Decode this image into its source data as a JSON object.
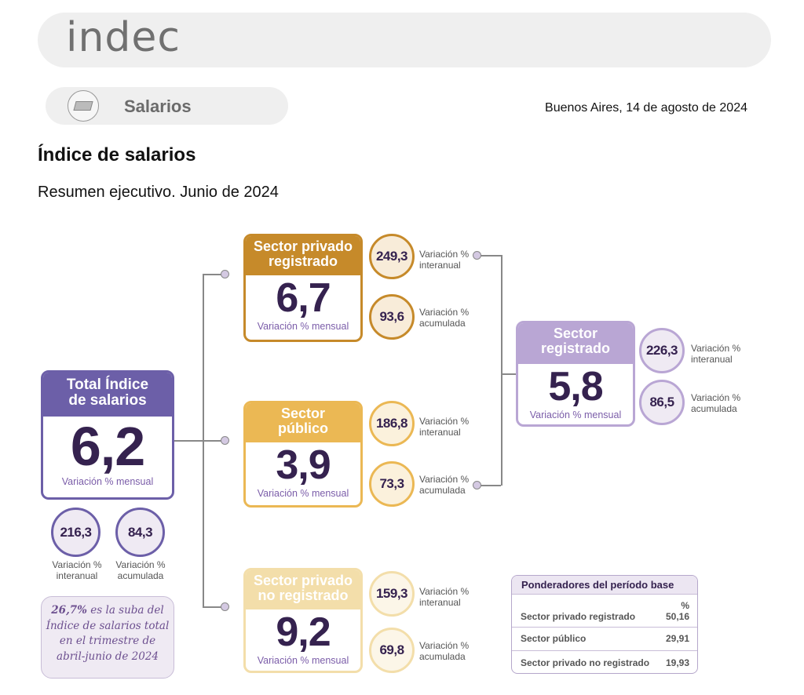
{
  "header": {
    "logo": "indec"
  },
  "section": {
    "label": "Salarios",
    "icon": "money-icon"
  },
  "date": "Buenos Aires, 14 de agosto de 2024",
  "title": "Índice de salarios",
  "subtitle": "Resumen ejecutivo. Junio de 2024",
  "monthly_label": "Variación % mensual",
  "interanual_label": [
    "Variación %",
    "interanual"
  ],
  "acumulada_label": [
    "Variación %",
    "acumulada"
  ],
  "total": {
    "title": [
      "Total Índice",
      "de salarios"
    ],
    "value": "6,2",
    "interanual": "216,3",
    "acumulada": "84,3",
    "color": "#6c5fa8"
  },
  "privado": {
    "title": [
      "Sector privado",
      "registrado"
    ],
    "value": "6,7",
    "interanual": "249,3",
    "acumulada": "93,6",
    "color": "#c68a2a"
  },
  "publico": {
    "title": [
      "Sector",
      "público"
    ],
    "value": "3,9",
    "interanual": "186,8",
    "acumulada": "73,3",
    "color": "#ebb854"
  },
  "no_registrado": {
    "title": [
      "Sector privado",
      "no registrado"
    ],
    "value": "9,2",
    "interanual": "159,3",
    "acumulada": "69,8",
    "color": "#f3deaa"
  },
  "registrado": {
    "title": [
      "Sector",
      "registrado"
    ],
    "value": "5,8",
    "interanual": "226,3",
    "acumulada": "86,5",
    "color": "#b9a6d4"
  },
  "note": {
    "highlight": "26,7%",
    "text": [
      " es la suba del",
      "Índice de salarios total",
      "en el trimestre de",
      "abril-junio de 2024"
    ]
  },
  "table": {
    "title": "Ponderadores del período base",
    "unit": "%",
    "rows": [
      {
        "label": "Sector privado registrado",
        "value": "50,16"
      },
      {
        "label": "Sector público",
        "value": "29,91"
      },
      {
        "label": "Sector privado no registrado",
        "value": "19,93"
      }
    ]
  }
}
